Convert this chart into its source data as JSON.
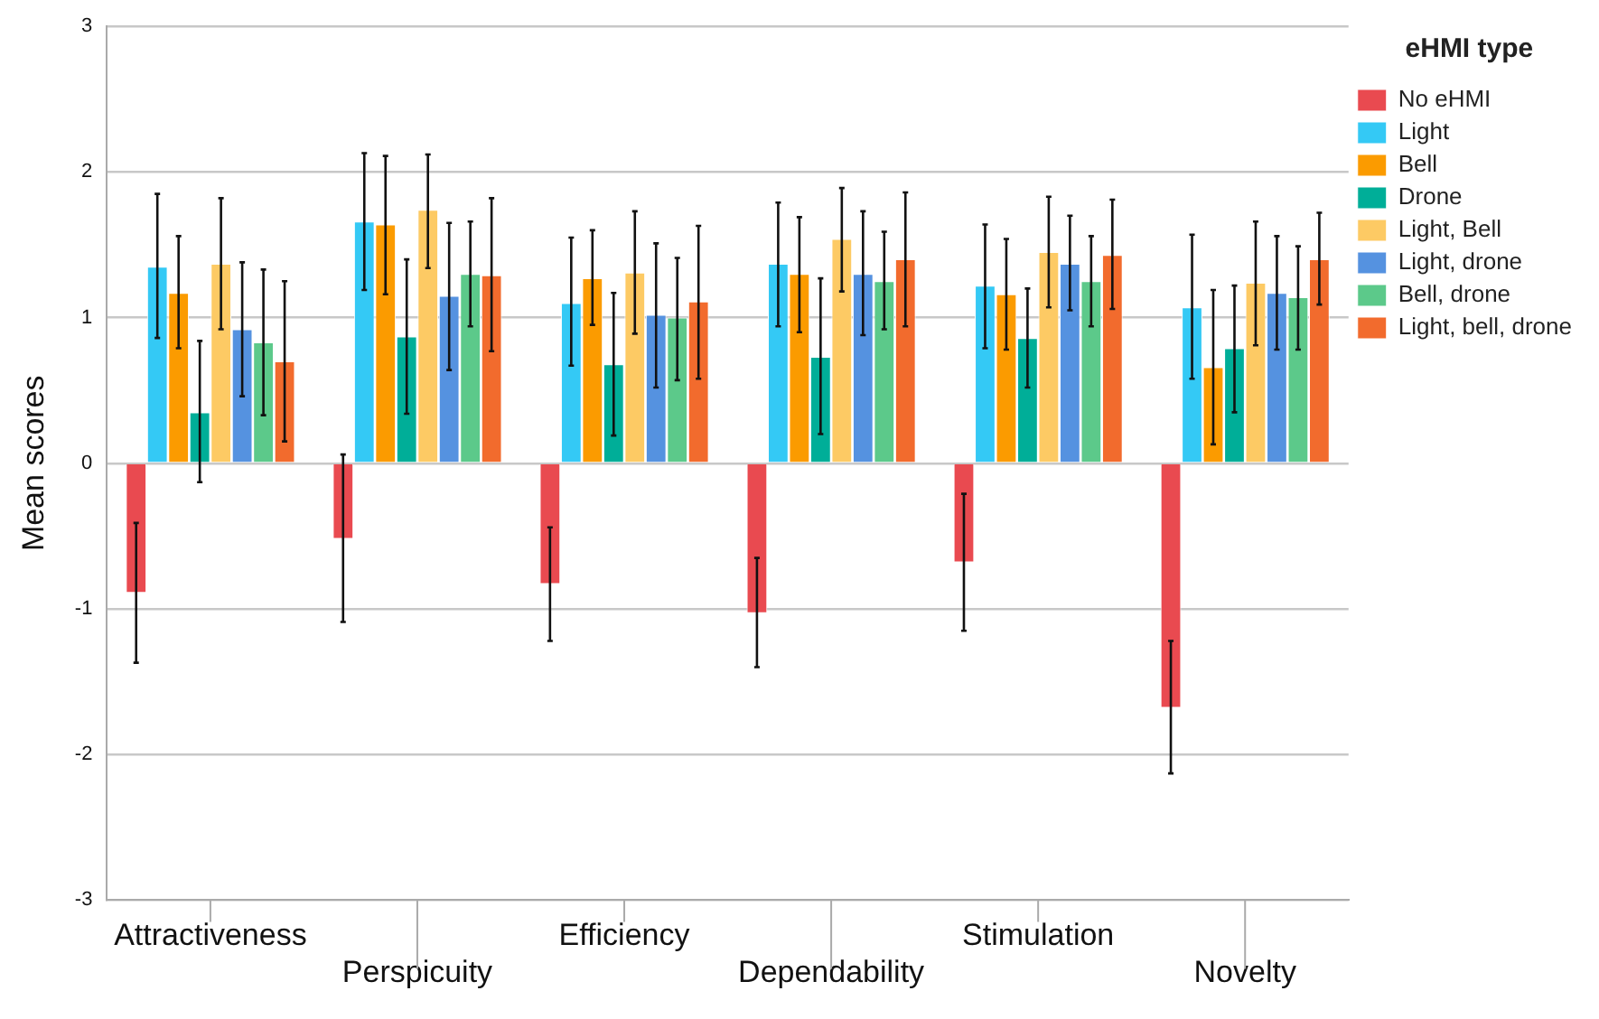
{
  "chart_data": {
    "type": "bar",
    "ylabel": "Mean scores",
    "legend_title": "eHMI type",
    "legend": "right",
    "grid": "y",
    "categories": [
      "Attractiveness",
      "Perspicuity",
      "Efficiency",
      "Dependability",
      "Stimulation",
      "Novelty"
    ],
    "ylim": [
      -3,
      3
    ],
    "yticks": [
      -3,
      -2,
      -1,
      0,
      1,
      2,
      3
    ],
    "series": [
      {
        "name": "No eHMI",
        "color": "#e94a50",
        "values": [
          -0.89,
          -0.52,
          -0.83,
          -1.03,
          -0.68,
          -1.68
        ],
        "errors": [
          [
            -1.37,
            -0.41
          ],
          [
            -1.09,
            0.06
          ],
          [
            -1.22,
            -0.44
          ],
          [
            -1.4,
            -0.65
          ],
          [
            -1.15,
            -0.21
          ],
          [
            -2.13,
            -1.22
          ]
        ]
      },
      {
        "name": "Light",
        "color": "#34c9f5",
        "values": [
          1.35,
          1.66,
          1.1,
          1.37,
          1.22,
          1.07
        ],
        "errors": [
          [
            0.86,
            1.85
          ],
          [
            1.19,
            2.13
          ],
          [
            0.67,
            1.55
          ],
          [
            0.94,
            1.79
          ],
          [
            0.79,
            1.64
          ],
          [
            0.58,
            1.57
          ]
        ]
      },
      {
        "name": "Bell",
        "color": "#fb9b00",
        "values": [
          1.17,
          1.64,
          1.27,
          1.3,
          1.16,
          0.66
        ],
        "errors": [
          [
            0.79,
            1.56
          ],
          [
            1.16,
            2.11
          ],
          [
            0.95,
            1.6
          ],
          [
            0.9,
            1.69
          ],
          [
            0.78,
            1.54
          ],
          [
            0.13,
            1.19
          ]
        ]
      },
      {
        "name": "Drone",
        "color": "#00ae98",
        "values": [
          0.35,
          0.87,
          0.68,
          0.73,
          0.86,
          0.79
        ],
        "errors": [
          [
            -0.13,
            0.84
          ],
          [
            0.34,
            1.4
          ],
          [
            0.19,
            1.17
          ],
          [
            0.2,
            1.27
          ],
          [
            0.52,
            1.2
          ],
          [
            0.35,
            1.22
          ]
        ]
      },
      {
        "name": "Light, Bell",
        "color": "#fdca64",
        "values": [
          1.37,
          1.74,
          1.31,
          1.54,
          1.45,
          1.24
        ],
        "errors": [
          [
            0.92,
            1.82
          ],
          [
            1.34,
            2.12
          ],
          [
            0.89,
            1.73
          ],
          [
            1.18,
            1.89
          ],
          [
            1.07,
            1.83
          ],
          [
            0.81,
            1.66
          ]
        ]
      },
      {
        "name": "Light, drone",
        "color": "#5592e0",
        "values": [
          0.92,
          1.15,
          1.02,
          1.3,
          1.37,
          1.17
        ],
        "errors": [
          [
            0.46,
            1.38
          ],
          [
            0.64,
            1.65
          ],
          [
            0.52,
            1.51
          ],
          [
            0.88,
            1.73
          ],
          [
            1.05,
            1.7
          ],
          [
            0.78,
            1.56
          ]
        ]
      },
      {
        "name": "Bell, drone",
        "color": "#5cc98a",
        "values": [
          0.83,
          1.3,
          1.0,
          1.25,
          1.25,
          1.14
        ],
        "errors": [
          [
            0.33,
            1.33
          ],
          [
            0.94,
            1.66
          ],
          [
            0.57,
            1.41
          ],
          [
            0.92,
            1.59
          ],
          [
            0.94,
            1.56
          ],
          [
            0.78,
            1.49
          ]
        ]
      },
      {
        "name": "Light, bell, drone",
        "color": "#f26b2d",
        "values": [
          0.7,
          1.29,
          1.11,
          1.4,
          1.43,
          1.4
        ],
        "errors": [
          [
            0.15,
            1.25
          ],
          [
            0.77,
            1.82
          ],
          [
            0.58,
            1.63
          ],
          [
            0.94,
            1.86
          ],
          [
            1.06,
            1.81
          ],
          [
            1.09,
            1.72
          ]
        ]
      }
    ]
  }
}
